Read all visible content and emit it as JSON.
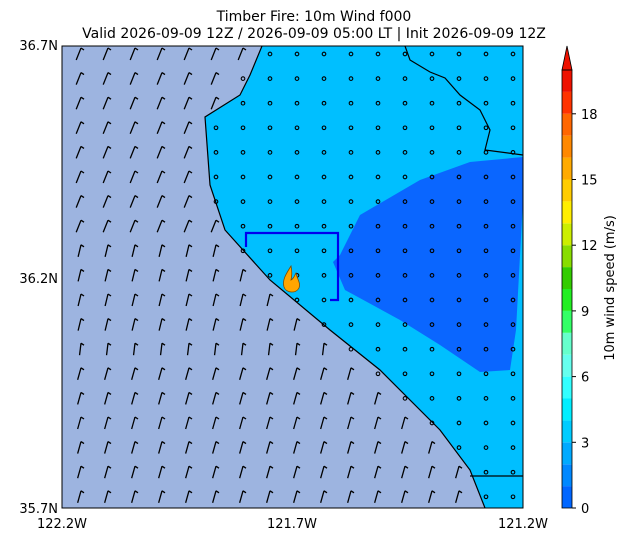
{
  "title": {
    "line1": "Timber Fire: 10m Wind f000",
    "line2": "Valid 2026-09-09 12Z / 2026-09-09 05:00 LT | Init 2026-09-09 12Z"
  },
  "axes": {
    "lat_labels": [
      "36.7N",
      "36.2N",
      "35.7N"
    ],
    "lon_labels": [
      "122.2W",
      "121.7W",
      "121.2W"
    ]
  },
  "colorbar": {
    "label": "10m wind speed (m/s)",
    "lim": [
      0,
      20
    ],
    "levels": [
      0,
      1,
      2,
      3,
      4,
      5,
      6,
      7,
      8,
      9,
      10,
      11,
      12,
      13,
      14,
      15,
      16,
      17,
      18,
      19
    ],
    "colors": [
      "#0066ff",
      "#0088ff",
      "#00aaff",
      "#00ccff",
      "#00eeff",
      "#33ffff",
      "#66ffee",
      "#66ffcc",
      "#33ff66",
      "#22ee22",
      "#33cc00",
      "#88dd00",
      "#ccee00",
      "#ffee00",
      "#ffcc00",
      "#ffaa00",
      "#ff8800",
      "#ff6600",
      "#ff3300",
      "#ee1100"
    ],
    "ticks": [
      0,
      3,
      6,
      9,
      12,
      15,
      18
    ]
  }
}
